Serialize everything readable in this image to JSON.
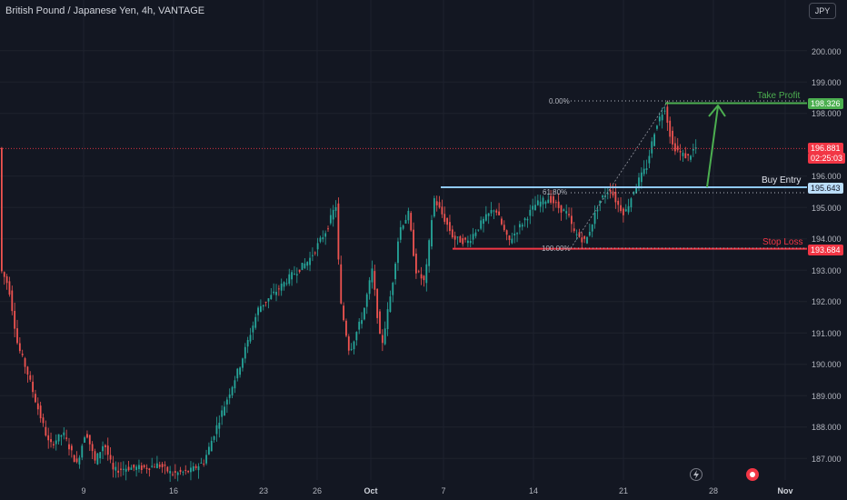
{
  "header": {
    "title": "British Pound / Japanese Yen, 4h, VANTAGE",
    "currency_button": "JPY"
  },
  "y_axis": {
    "ticks": [
      "200.000",
      "199.000",
      "198.000",
      "196.000",
      "195.000",
      "194.000",
      "193.000",
      "192.000",
      "191.000",
      "190.000",
      "189.000",
      "188.000",
      "187.000"
    ]
  },
  "x_axis": {
    "ticks": [
      "9",
      "16",
      "23",
      "26",
      "Oct",
      "7",
      "14",
      "21",
      "28",
      "Nov"
    ]
  },
  "price_badges": {
    "take_profit": "198.326",
    "current_price": "196.881",
    "countdown": "02:25:03",
    "buy_entry": "195.643",
    "stop_loss": "193.684"
  },
  "annotations": {
    "take_profit": "Take Profit",
    "buy_entry": "Buy Entry",
    "stop_loss": "Stop Loss"
  },
  "fib_labels": {
    "top": "0.00%",
    "mid": "61.80%",
    "bottom": "100.00%"
  },
  "colors": {
    "up": "#26a69a",
    "down": "#ef5350",
    "take_profit": "#4caf50",
    "stop_loss": "#f23645",
    "buy_entry": "#90caf9",
    "background": "#131722"
  },
  "icons": {
    "replay": "lightning-icon",
    "record": "record-icon"
  },
  "chart_data": {
    "type": "candlestick",
    "symbol": "GBPJPY",
    "timeframe": "4h",
    "ylim": [
      186.7,
      201.0
    ],
    "levels": {
      "take_profit": 198.326,
      "buy_entry": 195.643,
      "stop_loss": 193.684,
      "current": 196.881
    },
    "path": [
      {
        "t": 0,
        "p": 193.1
      },
      {
        "t": 10,
        "p": 192.5
      },
      {
        "t": 20,
        "p": 190.6
      },
      {
        "t": 30,
        "p": 189.8
      },
      {
        "t": 40,
        "p": 188.8
      },
      {
        "t": 55,
        "p": 187.4
      },
      {
        "t": 70,
        "p": 187.8
      },
      {
        "t": 85,
        "p": 186.8
      },
      {
        "t": 95,
        "p": 187.9
      },
      {
        "t": 105,
        "p": 186.9
      },
      {
        "t": 115,
        "p": 187.5
      },
      {
        "t": 125,
        "p": 186.6
      },
      {
        "t": 140,
        "p": 186.7
      },
      {
        "t": 160,
        "p": 186.7
      },
      {
        "t": 175,
        "p": 186.8
      },
      {
        "t": 190,
        "p": 186.5
      },
      {
        "t": 210,
        "p": 186.6
      },
      {
        "t": 225,
        "p": 186.9
      },
      {
        "t": 245,
        "p": 188.5
      },
      {
        "t": 265,
        "p": 190.0
      },
      {
        "t": 285,
        "p": 191.8
      },
      {
        "t": 300,
        "p": 192.2
      },
      {
        "t": 320,
        "p": 192.8
      },
      {
        "t": 340,
        "p": 193.3
      },
      {
        "t": 360,
        "p": 194.3
      },
      {
        "t": 370,
        "p": 195.1
      },
      {
        "t": 375,
        "p": 192.0
      },
      {
        "t": 385,
        "p": 190.4
      },
      {
        "t": 400,
        "p": 191.6
      },
      {
        "t": 410,
        "p": 193.0
      },
      {
        "t": 420,
        "p": 190.5
      },
      {
        "t": 432,
        "p": 192.5
      },
      {
        "t": 440,
        "p": 194.3
      },
      {
        "t": 450,
        "p": 194.8
      },
      {
        "t": 458,
        "p": 193.0
      },
      {
        "t": 468,
        "p": 192.6
      },
      {
        "t": 478,
        "p": 195.3
      },
      {
        "t": 490,
        "p": 194.6
      },
      {
        "t": 500,
        "p": 194.0
      },
      {
        "t": 515,
        "p": 193.9
      },
      {
        "t": 530,
        "p": 194.5
      },
      {
        "t": 545,
        "p": 195.0
      },
      {
        "t": 560,
        "p": 193.9
      },
      {
        "t": 575,
        "p": 194.5
      },
      {
        "t": 590,
        "p": 195.1
      },
      {
        "t": 605,
        "p": 195.3
      },
      {
        "t": 615,
        "p": 195.0
      },
      {
        "t": 625,
        "p": 194.8
      },
      {
        "t": 632,
        "p": 194.2
      },
      {
        "t": 645,
        "p": 193.9
      },
      {
        "t": 660,
        "p": 195.2
      },
      {
        "t": 672,
        "p": 195.6
      },
      {
        "t": 680,
        "p": 195.1
      },
      {
        "t": 688,
        "p": 194.8
      },
      {
        "t": 700,
        "p": 195.7
      },
      {
        "t": 712,
        "p": 196.3
      },
      {
        "t": 722,
        "p": 197.6
      },
      {
        "t": 732,
        "p": 198.2
      },
      {
        "t": 740,
        "p": 197.0
      },
      {
        "t": 750,
        "p": 196.7
      },
      {
        "t": 758,
        "p": 196.6
      },
      {
        "t": 765,
        "p": 196.9
      }
    ]
  }
}
